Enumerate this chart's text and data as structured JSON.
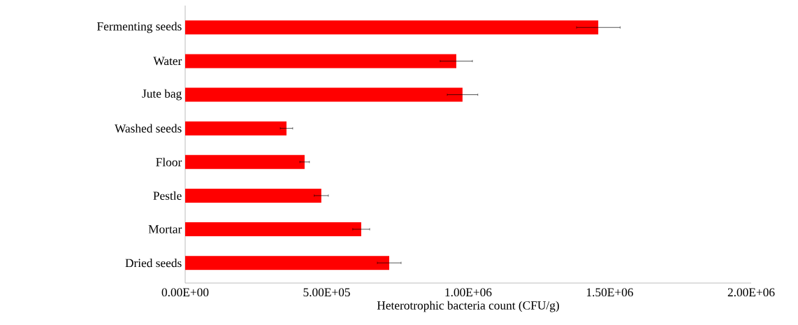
{
  "chart_data": {
    "type": "bar",
    "orientation": "horizontal",
    "xlabel": "Heterotrophic bacteria count (CFU/g)",
    "categories": [
      "Fermenting seeds",
      "Water",
      "Jute bag",
      "Washed seeds",
      "Floor",
      "Pestle",
      "Mortar",
      "Dried seeds"
    ],
    "values": [
      1460000,
      958000,
      980000,
      358000,
      422000,
      481000,
      622000,
      721000
    ],
    "errors": [
      77000,
      57000,
      54000,
      22000,
      17000,
      25000,
      30000,
      42000
    ],
    "color": "#ff0000",
    "xlim": [
      0,
      2000000
    ],
    "xticks": [
      {
        "value": 0,
        "label": "0.00E+00"
      },
      {
        "value": 500000,
        "label": "5.00E+05"
      },
      {
        "value": 1000000,
        "label": "1.00E+06"
      },
      {
        "value": 1500000,
        "label": "1.50E+06"
      },
      {
        "value": 2000000,
        "label": "2.00E+06"
      }
    ],
    "grid": false
  }
}
